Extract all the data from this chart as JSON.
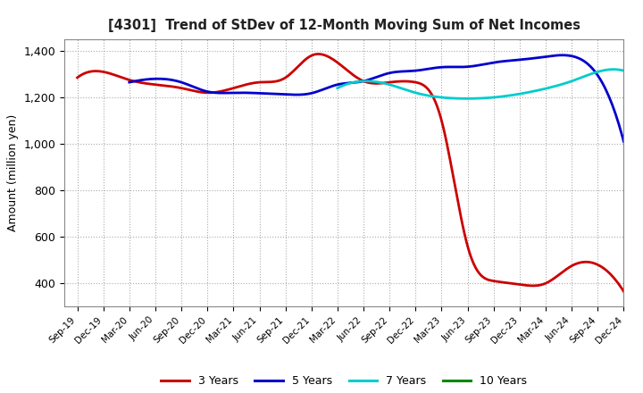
{
  "title": "[4301]  Trend of StDev of 12-Month Moving Sum of Net Incomes",
  "ylabel": "Amount (million yen)",
  "background_color": "#ffffff",
  "ylim": [
    300,
    1450
  ],
  "yticks": [
    400,
    600,
    800,
    1000,
    1200,
    1400
  ],
  "series": {
    "3 Years": {
      "color": "#cc0000",
      "x": [
        0,
        1,
        2,
        3,
        4,
        5,
        6,
        7,
        8,
        9,
        10,
        11,
        12,
        13,
        14,
        15,
        16,
        17,
        18,
        19,
        20,
        21
      ],
      "values": [
        1285,
        1310,
        1275,
        1255,
        1240,
        1220,
        1240,
        1265,
        1285,
        1380,
        1350,
        1270,
        1265,
        1265,
        1100,
        560,
        410,
        395,
        400,
        475,
        480,
        365
      ]
    },
    "5 Years": {
      "color": "#0000cc",
      "x": [
        2,
        3,
        4,
        5,
        6,
        7,
        8,
        9,
        10,
        11,
        12,
        13,
        14,
        15,
        16,
        17,
        18,
        19,
        20,
        21
      ],
      "values": [
        1265,
        1280,
        1265,
        1225,
        1220,
        1218,
        1213,
        1218,
        1255,
        1270,
        1305,
        1315,
        1330,
        1332,
        1350,
        1362,
        1375,
        1378,
        1295,
        1010
      ]
    },
    "7 Years": {
      "color": "#00cccc",
      "x": [
        10,
        11,
        12,
        13,
        14,
        15,
        16,
        17,
        18,
        19,
        20,
        21
      ],
      "values": [
        1240,
        1270,
        1255,
        1220,
        1200,
        1195,
        1200,
        1215,
        1238,
        1270,
        1310,
        1315
      ]
    },
    "10 Years": {
      "color": "#008800",
      "x": [],
      "values": []
    }
  },
  "xtick_labels": [
    "Sep-19",
    "Dec-19",
    "Mar-20",
    "Jun-20",
    "Sep-20",
    "Dec-20",
    "Mar-21",
    "Jun-21",
    "Sep-21",
    "Dec-21",
    "Mar-22",
    "Jun-22",
    "Sep-22",
    "Dec-22",
    "Mar-23",
    "Jun-23",
    "Sep-23",
    "Dec-23",
    "Mar-24",
    "Jun-24",
    "Sep-24",
    "Dec-24"
  ],
  "legend_entries": [
    "3 Years",
    "5 Years",
    "7 Years",
    "10 Years"
  ],
  "legend_colors": [
    "#cc0000",
    "#0000cc",
    "#00cccc",
    "#008800"
  ]
}
